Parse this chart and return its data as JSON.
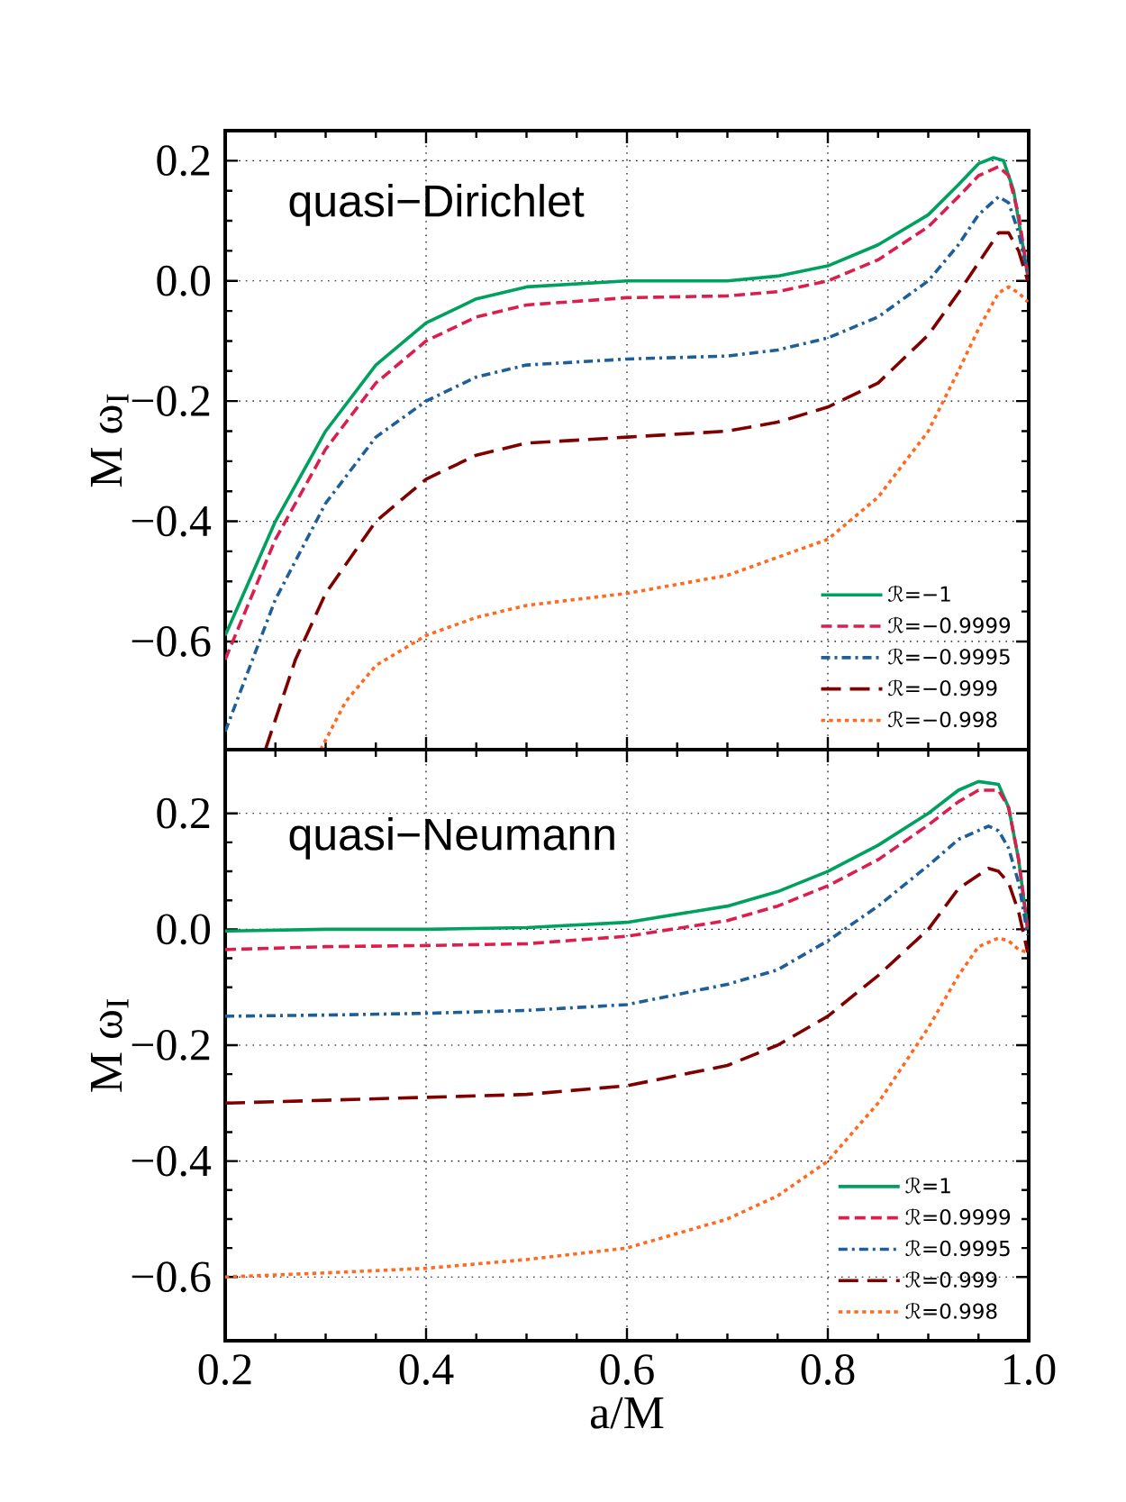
{
  "chart_data": [
    {
      "type": "line",
      "ylabel": "M ω$_{I}$",
      "annotations": [
        "quasi−Dirichlet"
      ],
      "xlim": [
        0.2,
        1.0
      ],
      "xticks": [
        0.2,
        0.4,
        0.6,
        0.8,
        1.0
      ],
      "ylim": [
        -0.78,
        0.25
      ],
      "yticks": [
        {
          "value": -0.6,
          "label": "−0.6"
        },
        {
          "value": -0.4,
          "label": "−0.4"
        },
        {
          "value": -0.2,
          "label": "−0.2"
        },
        {
          "value": 0.0,
          "label": "0.0"
        },
        0.2
      ],
      "tick_labels": "y",
      "grid": true,
      "legend": "bottom right",
      "series": [
        {
          "name": "ℛ=−1",
          "color": "#00a060",
          "line_style": "solid",
          "x": [
            0.2,
            0.25,
            0.3,
            0.35,
            0.4,
            0.45,
            0.5,
            0.6,
            0.7,
            0.75,
            0.8,
            0.85,
            0.9,
            0.93,
            0.95,
            0.965,
            0.975,
            0.985,
            0.995,
            0.999
          ],
          "values": [
            -0.59,
            -0.4,
            -0.25,
            -0.14,
            -0.07,
            -0.03,
            -0.01,
            0.0,
            0.0,
            0.008,
            0.025,
            0.06,
            0.11,
            0.16,
            0.195,
            0.205,
            0.2,
            0.15,
            0.05,
            0.01
          ]
        },
        {
          "name": "ℛ=−0.9999",
          "color": "#dc1e4e",
          "line_style": "dashed",
          "x": [
            0.2,
            0.25,
            0.3,
            0.35,
            0.4,
            0.45,
            0.5,
            0.6,
            0.7,
            0.75,
            0.8,
            0.85,
            0.9,
            0.93,
            0.95,
            0.97,
            0.98,
            0.99,
            0.999
          ],
          "values": [
            -0.63,
            -0.43,
            -0.28,
            -0.17,
            -0.1,
            -0.06,
            -0.04,
            -0.028,
            -0.025,
            -0.018,
            0.0,
            0.035,
            0.09,
            0.14,
            0.175,
            0.19,
            0.175,
            0.11,
            0.01
          ]
        },
        {
          "name": "ℛ=−0.9995",
          "color": "#1f5f99",
          "line_style": "dashdot",
          "x": [
            0.2,
            0.25,
            0.3,
            0.35,
            0.4,
            0.45,
            0.5,
            0.6,
            0.7,
            0.75,
            0.8,
            0.85,
            0.9,
            0.93,
            0.95,
            0.97,
            0.98,
            0.99,
            0.999
          ],
          "values": [
            -0.75,
            -0.53,
            -0.37,
            -0.26,
            -0.2,
            -0.16,
            -0.14,
            -0.13,
            -0.125,
            -0.115,
            -0.095,
            -0.06,
            0.0,
            0.06,
            0.11,
            0.14,
            0.13,
            0.08,
            0.01
          ]
        },
        {
          "name": "ℛ=−0.999",
          "color": "#800000",
          "line_style": "longdashed",
          "x": [
            0.24,
            0.27,
            0.3,
            0.35,
            0.4,
            0.45,
            0.5,
            0.6,
            0.7,
            0.75,
            0.8,
            0.85,
            0.9,
            0.93,
            0.95,
            0.97,
            0.98,
            0.99,
            0.999
          ],
          "values": [
            -0.78,
            -0.63,
            -0.52,
            -0.4,
            -0.33,
            -0.29,
            -0.27,
            -0.26,
            -0.25,
            -0.235,
            -0.21,
            -0.17,
            -0.09,
            -0.02,
            0.03,
            0.08,
            0.08,
            0.05,
            0.0
          ]
        },
        {
          "name": "ℛ=−0.998",
          "color": "#ff6a1f",
          "line_style": "dotted",
          "x": [
            0.295,
            0.32,
            0.35,
            0.4,
            0.45,
            0.5,
            0.6,
            0.7,
            0.75,
            0.8,
            0.85,
            0.9,
            0.93,
            0.95,
            0.97,
            0.98,
            0.99,
            0.999
          ],
          "values": [
            -0.78,
            -0.7,
            -0.64,
            -0.59,
            -0.56,
            -0.54,
            -0.52,
            -0.49,
            -0.46,
            -0.43,
            -0.36,
            -0.25,
            -0.15,
            -0.08,
            -0.02,
            -0.01,
            -0.02,
            -0.035
          ]
        }
      ]
    },
    {
      "type": "line",
      "xlabel": "a/M",
      "ylabel": "M ω$_{I}$",
      "annotations": [
        "quasi−Neumann"
      ],
      "xlim": [
        0.2,
        1.0
      ],
      "xticks": [
        0.2,
        0.4,
        0.6,
        0.8,
        {
          "value": 1.0,
          "label": "1.0"
        }
      ],
      "ylim": [
        -0.71,
        0.31
      ],
      "yticks": [
        {
          "value": -0.6,
          "label": "−0.6"
        },
        {
          "value": -0.4,
          "label": "−0.4"
        },
        {
          "value": -0.2,
          "label": "−0.2"
        },
        {
          "value": 0.0,
          "label": "0.0"
        },
        0.2
      ],
      "grid": true,
      "legend": "bottom right",
      "series": [
        {
          "name": "ℛ=1",
          "color": "#00a060",
          "line_style": "solid",
          "x": [
            0.2,
            0.3,
            0.4,
            0.5,
            0.6,
            0.7,
            0.75,
            0.8,
            0.85,
            0.9,
            0.93,
            0.95,
            0.97,
            0.98,
            0.99,
            0.999
          ],
          "values": [
            -0.003,
            0.0,
            0.0,
            0.003,
            0.012,
            0.04,
            0.065,
            0.1,
            0.145,
            0.2,
            0.24,
            0.255,
            0.25,
            0.21,
            0.12,
            0.0
          ]
        },
        {
          "name": "ℛ=0.9999",
          "color": "#dc1e4e",
          "line_style": "dashed",
          "x": [
            0.2,
            0.3,
            0.4,
            0.5,
            0.6,
            0.7,
            0.75,
            0.8,
            0.85,
            0.9,
            0.93,
            0.95,
            0.97,
            0.98,
            0.99,
            0.999
          ],
          "values": [
            -0.035,
            -0.03,
            -0.028,
            -0.025,
            -0.012,
            0.015,
            0.04,
            0.075,
            0.12,
            0.18,
            0.22,
            0.24,
            0.24,
            0.21,
            0.12,
            0.0
          ]
        },
        {
          "name": "ℛ=0.9995",
          "color": "#1f5f99",
          "line_style": "dashdot",
          "x": [
            0.2,
            0.3,
            0.4,
            0.5,
            0.6,
            0.7,
            0.75,
            0.8,
            0.85,
            0.9,
            0.93,
            0.96,
            0.97,
            0.98,
            0.99,
            0.999
          ],
          "values": [
            -0.15,
            -0.148,
            -0.145,
            -0.14,
            -0.13,
            -0.095,
            -0.07,
            -0.02,
            0.04,
            0.11,
            0.155,
            0.178,
            0.17,
            0.14,
            0.08,
            -0.01
          ]
        },
        {
          "name": "ℛ=0.999",
          "color": "#800000",
          "line_style": "longdashed",
          "x": [
            0.2,
            0.3,
            0.4,
            0.5,
            0.6,
            0.7,
            0.75,
            0.8,
            0.85,
            0.9,
            0.93,
            0.96,
            0.97,
            0.98,
            0.99,
            0.999
          ],
          "values": [
            -0.3,
            -0.295,
            -0.29,
            -0.285,
            -0.27,
            -0.235,
            -0.2,
            -0.15,
            -0.08,
            0.0,
            0.07,
            0.105,
            0.1,
            0.08,
            0.03,
            -0.04
          ]
        },
        {
          "name": "ℛ=0.998",
          "color": "#ff6a1f",
          "line_style": "dotted",
          "x": [
            0.2,
            0.3,
            0.4,
            0.5,
            0.6,
            0.7,
            0.75,
            0.8,
            0.85,
            0.9,
            0.93,
            0.95,
            0.97,
            0.98,
            0.99,
            0.999
          ],
          "values": [
            -0.6,
            -0.593,
            -0.585,
            -0.57,
            -0.55,
            -0.5,
            -0.46,
            -0.4,
            -0.3,
            -0.17,
            -0.08,
            -0.03,
            -0.015,
            -0.02,
            -0.035,
            -0.04
          ]
        }
      ]
    }
  ]
}
